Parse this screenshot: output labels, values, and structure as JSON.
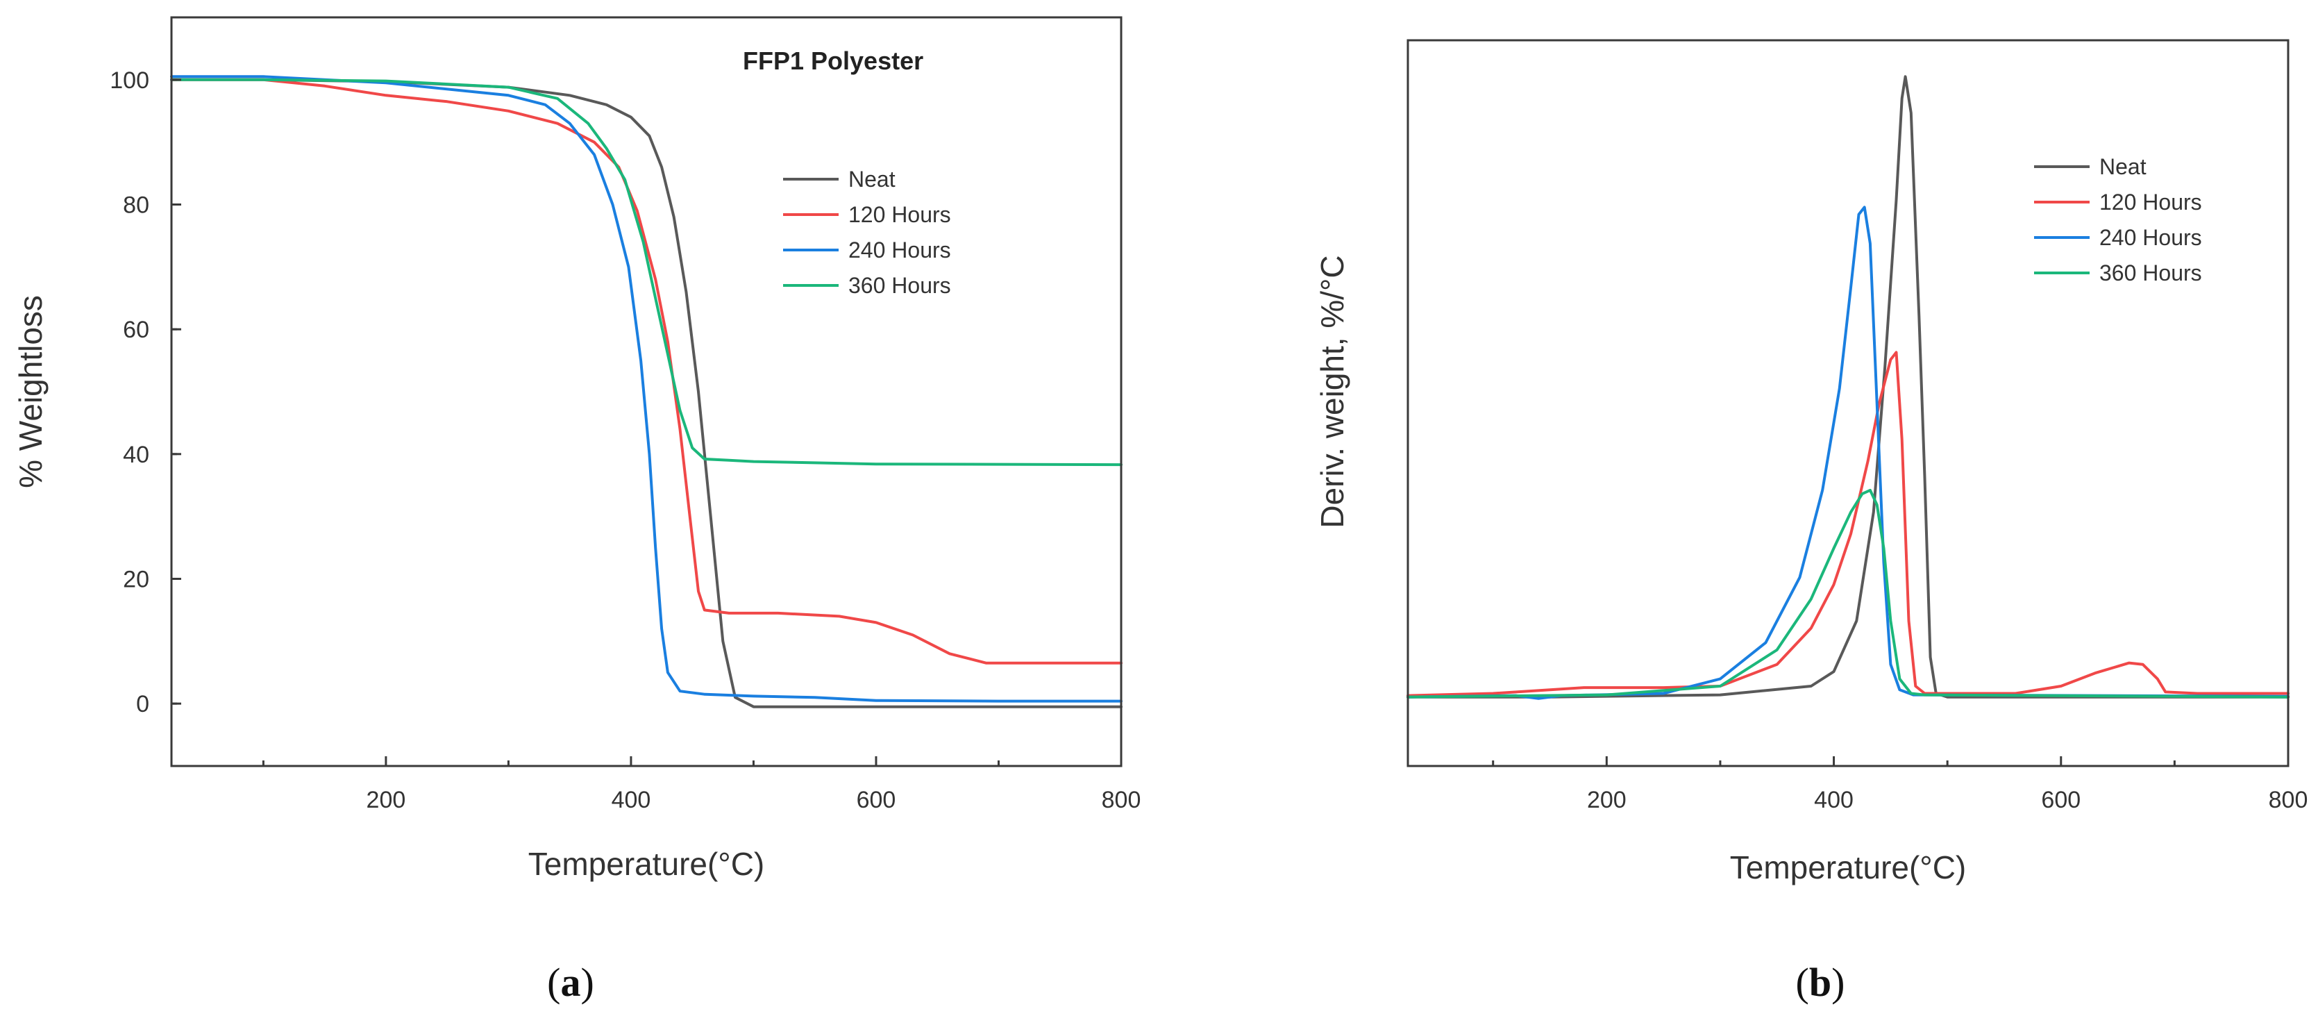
{
  "chart_data": [
    {
      "type": "line",
      "title": "FFP1 Polyester",
      "xlabel": "Temperature(°C)",
      "ylabel": "% Weightloss",
      "xlim": [
        25,
        800
      ],
      "ylim": [
        -10,
        110
      ],
      "xticks": [
        200,
        400,
        600,
        800
      ],
      "yticks": [
        0,
        20,
        40,
        60,
        80,
        100
      ],
      "legend_position": "center-right",
      "panel_label": "a",
      "series": [
        {
          "name": "Neat",
          "color": "#595959",
          "points": [
            [
              25,
              100
            ],
            [
              100,
              100
            ],
            [
              200,
              99.7
            ],
            [
              300,
              98.8
            ],
            [
              350,
              97.5
            ],
            [
              380,
              96
            ],
            [
              400,
              94
            ],
            [
              415,
              91
            ],
            [
              425,
              86
            ],
            [
              435,
              78
            ],
            [
              445,
              66
            ],
            [
              455,
              50
            ],
            [
              465,
              30
            ],
            [
              475,
              10
            ],
            [
              485,
              1
            ],
            [
              500,
              -0.5
            ],
            [
              600,
              -0.5
            ],
            [
              800,
              -0.5
            ]
          ]
        },
        {
          "name": "120 Hours",
          "color": "#f04848",
          "points": [
            [
              25,
              100
            ],
            [
              100,
              100
            ],
            [
              150,
              99
            ],
            [
              200,
              97.5
            ],
            [
              250,
              96.5
            ],
            [
              300,
              95
            ],
            [
              340,
              93
            ],
            [
              370,
              90
            ],
            [
              390,
              86
            ],
            [
              405,
              79
            ],
            [
              420,
              68
            ],
            [
              430,
              58
            ],
            [
              440,
              44
            ],
            [
              448,
              30
            ],
            [
              455,
              18
            ],
            [
              460,
              15
            ],
            [
              480,
              14.5
            ],
            [
              520,
              14.5
            ],
            [
              570,
              14
            ],
            [
              600,
              13
            ],
            [
              630,
              11
            ],
            [
              660,
              8
            ],
            [
              690,
              6.5
            ],
            [
              750,
              6.5
            ],
            [
              800,
              6.5
            ]
          ]
        },
        {
          "name": "240 Hours",
          "color": "#1a7fe0",
          "points": [
            [
              25,
              100.5
            ],
            [
              100,
              100.5
            ],
            [
              200,
              99.5
            ],
            [
              300,
              97.5
            ],
            [
              330,
              96
            ],
            [
              350,
              93
            ],
            [
              370,
              88
            ],
            [
              385,
              80
            ],
            [
              398,
              70
            ],
            [
              408,
              55
            ],
            [
              415,
              40
            ],
            [
              420,
              25
            ],
            [
              425,
              12
            ],
            [
              430,
              5
            ],
            [
              440,
              2
            ],
            [
              460,
              1.5
            ],
            [
              500,
              1.2
            ],
            [
              550,
              1
            ],
            [
              600,
              0.5
            ],
            [
              700,
              0.4
            ],
            [
              800,
              0.4
            ]
          ]
        },
        {
          "name": "360 Hours",
          "color": "#1bb77b",
          "points": [
            [
              25,
              100
            ],
            [
              100,
              100
            ],
            [
              200,
              99.8
            ],
            [
              300,
              98.8
            ],
            [
              340,
              97
            ],
            [
              365,
              93
            ],
            [
              380,
              89
            ],
            [
              395,
              84
            ],
            [
              410,
              74
            ],
            [
              420,
              65
            ],
            [
              430,
              56
            ],
            [
              440,
              47
            ],
            [
              450,
              41
            ],
            [
              460,
              39.2
            ],
            [
              480,
              39
            ],
            [
              500,
              38.8
            ],
            [
              550,
              38.6
            ],
            [
              600,
              38.4
            ],
            [
              800,
              38.3
            ]
          ]
        }
      ]
    },
    {
      "type": "line",
      "title": "",
      "xlabel": "Temperature(°C)",
      "ylabel": "Deriv. weight, %/°C",
      "xlim": [
        25,
        800
      ],
      "ylim": [
        0,
        1
      ],
      "xticks": [
        200,
        400,
        600,
        800
      ],
      "yticks": [],
      "legend_position": "top-right",
      "panel_label": "b",
      "series": [
        {
          "name": "Neat",
          "color": "#595959",
          "points": [
            [
              25,
              0.095
            ],
            [
              150,
              0.095
            ],
            [
              300,
              0.098
            ],
            [
              380,
              0.11
            ],
            [
              400,
              0.13
            ],
            [
              420,
              0.2
            ],
            [
              435,
              0.35
            ],
            [
              445,
              0.55
            ],
            [
              455,
              0.78
            ],
            [
              460,
              0.92
            ],
            [
              463,
              0.95
            ],
            [
              468,
              0.9
            ],
            [
              475,
              0.62
            ],
            [
              480,
              0.4
            ],
            [
              485,
              0.15
            ],
            [
              490,
              0.1
            ],
            [
              500,
              0.095
            ],
            [
              800,
              0.095
            ]
          ]
        },
        {
          "name": "120 Hours",
          "color": "#f04848",
          "points": [
            [
              25,
              0.097
            ],
            [
              100,
              0.1
            ],
            [
              180,
              0.108
            ],
            [
              250,
              0.108
            ],
            [
              300,
              0.11
            ],
            [
              350,
              0.14
            ],
            [
              380,
              0.19
            ],
            [
              400,
              0.25
            ],
            [
              415,
              0.32
            ],
            [
              430,
              0.42
            ],
            [
              440,
              0.5
            ],
            [
              450,
              0.56
            ],
            [
              455,
              0.57
            ],
            [
              460,
              0.45
            ],
            [
              466,
              0.2
            ],
            [
              472,
              0.11
            ],
            [
              480,
              0.1
            ],
            [
              560,
              0.1
            ],
            [
              600,
              0.11
            ],
            [
              630,
              0.128
            ],
            [
              660,
              0.142
            ],
            [
              672,
              0.14
            ],
            [
              685,
              0.12
            ],
            [
              692,
              0.102
            ],
            [
              720,
              0.1
            ],
            [
              800,
              0.1
            ]
          ]
        },
        {
          "name": "240 Hours",
          "color": "#1a7fe0",
          "points": [
            [
              25,
              0.095
            ],
            [
              120,
              0.097
            ],
            [
              140,
              0.093
            ],
            [
              160,
              0.097
            ],
            [
              250,
              0.1
            ],
            [
              300,
              0.12
            ],
            [
              340,
              0.17
            ],
            [
              370,
              0.26
            ],
            [
              390,
              0.38
            ],
            [
              405,
              0.52
            ],
            [
              415,
              0.66
            ],
            [
              422,
              0.76
            ],
            [
              427,
              0.77
            ],
            [
              432,
              0.72
            ],
            [
              438,
              0.5
            ],
            [
              444,
              0.28
            ],
            [
              450,
              0.14
            ],
            [
              458,
              0.105
            ],
            [
              470,
              0.098
            ],
            [
              800,
              0.096
            ]
          ]
        },
        {
          "name": "360 Hours",
          "color": "#1bb77b",
          "points": [
            [
              25,
              0.095
            ],
            [
              200,
              0.098
            ],
            [
              300,
              0.11
            ],
            [
              350,
              0.16
            ],
            [
              380,
              0.23
            ],
            [
              400,
              0.3
            ],
            [
              415,
              0.35
            ],
            [
              425,
              0.375
            ],
            [
              432,
              0.38
            ],
            [
              438,
              0.36
            ],
            [
              444,
              0.3
            ],
            [
              450,
              0.2
            ],
            [
              458,
              0.12
            ],
            [
              468,
              0.1
            ],
            [
              480,
              0.098
            ],
            [
              800,
              0.095
            ]
          ]
        }
      ]
    }
  ]
}
